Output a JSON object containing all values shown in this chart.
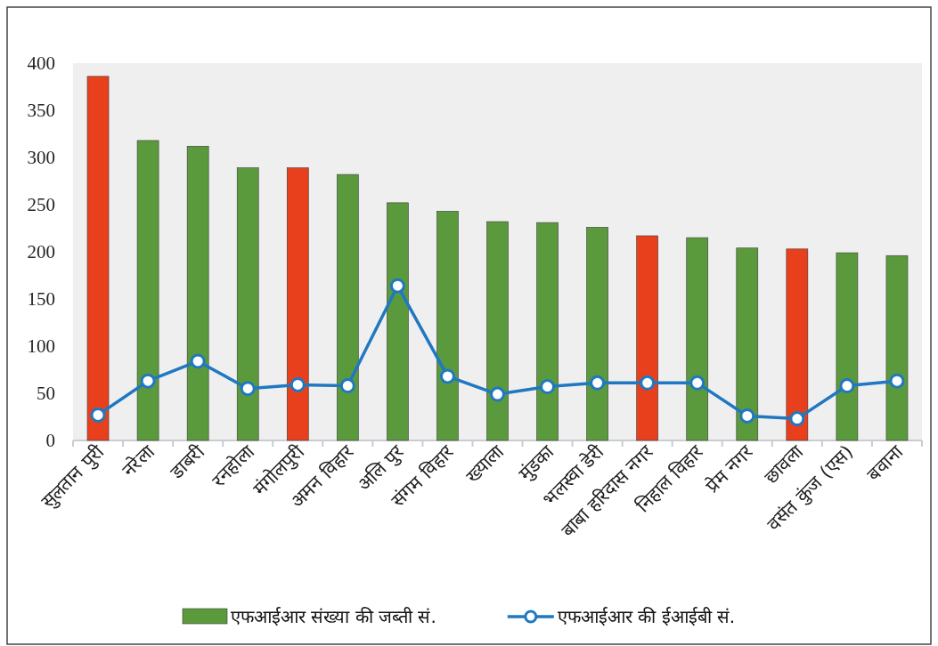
{
  "chart_data": {
    "type": "bar",
    "categories": [
      "सुलतान पुरी",
      "नरेला",
      "डाबरी",
      "रनहोला",
      "मंगोलपुरी",
      "अमन विहार",
      "अलि पुर",
      "संगम विहार",
      "ख्याला",
      "मुंडका",
      "भलस्वा डेरी",
      "बाबा हरिदास नगर",
      "निहाल विहार",
      "प्रेम नगर",
      "छावला",
      "वसंत कुंज (एस)",
      "बवाना"
    ],
    "series": [
      {
        "name": "एफआईआर संख्या की जब्ती सं.",
        "color": "#5b9a3c",
        "colors": [
          "#e8401c",
          "#5b9a3c",
          "#5b9a3c",
          "#5b9a3c",
          "#e8401c",
          "#5b9a3c",
          "#5b9a3c",
          "#5b9a3c",
          "#5b9a3c",
          "#5b9a3c",
          "#5b9a3c",
          "#e8401c",
          "#5b9a3c",
          "#5b9a3c",
          "#e8401c",
          "#5b9a3c",
          "#5b9a3c"
        ],
        "values": [
          386,
          318,
          312,
          289,
          289,
          282,
          252,
          243,
          232,
          231,
          226,
          217,
          215,
          204,
          203,
          199,
          196
        ]
      },
      {
        "name": "एफआईआर की ईआईबी सं.",
        "type": "line",
        "color": "#1f78c1",
        "marker": "circle",
        "values": [
          27,
          63,
          84,
          55,
          59,
          58,
          164,
          68,
          49,
          57,
          61,
          61,
          61,
          26,
          23,
          58,
          63
        ]
      }
    ],
    "ylim": [
      0,
      400
    ],
    "yticks": [
      0,
      50,
      100,
      150,
      200,
      250,
      300,
      350,
      400
    ],
    "legend": "bottom"
  }
}
